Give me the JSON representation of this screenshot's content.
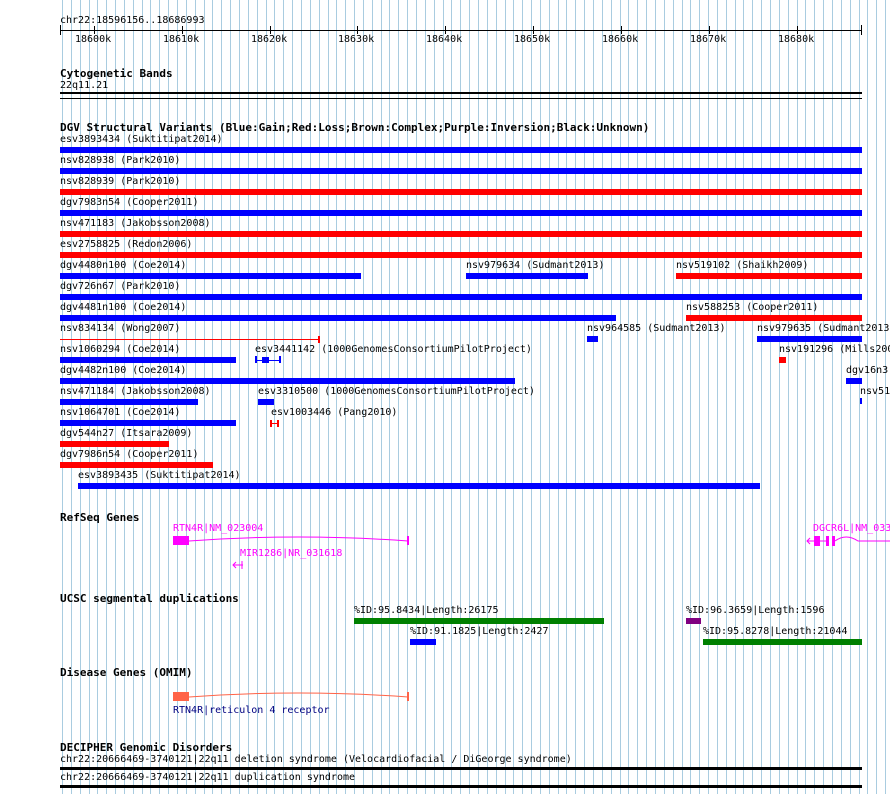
{
  "region": "chr22:18596156..18686993",
  "ruler": {
    "ticks": [
      "18600k",
      "18610k",
      "18620k",
      "18630k",
      "18640k",
      "18650k",
      "18660k",
      "18670k",
      "18680k"
    ]
  },
  "tracks": {
    "cytoband": {
      "title": "Cytogenetic Bands",
      "band": "22q11.21"
    },
    "dgv": {
      "title": "DGV Structural Variants (Blue:Gain;Red:Loss;Brown:Complex;Purple:Inversion;Black:Unknown)",
      "colors": {
        "gain": "#0000ff",
        "loss": "#ff0000"
      },
      "labels": [
        "esv3893434 (Suktitipat2014)",
        "nsv828938 (Park2010)",
        "nsv828939 (Park2010)",
        "dgv7983n54 (Cooper2011)",
        "nsv471183 (Jakobsson2008)",
        "esv2758825 (Redon2006)",
        "dgv4480n100 (Coe2014)",
        "nsv979634 (Sudmant2013)",
        "nsv519102 (Shaikh2009)",
        "dgv726n67 (Park2010)",
        "dgv4481n100 (Coe2014)",
        "nsv588253 (Cooper2011)",
        "nsv834134 (Wong2007)",
        "nsv964585 (Sudmant2013)",
        "nsv979635 (Sudmant2013",
        "nsv1060294 (Coe2014)",
        "esv3441142 (1000GenomesConsortiumPilotProject)",
        "nsv191296 (Mills200",
        "dgv4482n100 (Coe2014)",
        "dgv16n3",
        "nsv471184 (Jakobsson2008)",
        "esv3310500 (1000GenomesConsortiumPilotProject)",
        "nsv51",
        "nsv1064701 (Coe2014)",
        "esv1003446 (Pang2010)",
        "dgv544n27 (Itsara2009)",
        "dgv7986n54 (Cooper2011)",
        "esv3893435 (Suktitipat2014)"
      ]
    },
    "refseq": {
      "title": "RefSeq Genes",
      "color": "#ff00ff",
      "genes": [
        "RTN4R|NM_023004",
        "MIR1286|NR_031618",
        "DGCR6L|NM_033"
      ]
    },
    "segdups": {
      "title": "UCSC segmental duplications",
      "labels": [
        "%ID:95.8434|Length:26175",
        "%ID:91.1825|Length:2427",
        "%ID:96.3659|Length:1596",
        "%ID:95.8278|Length:21044"
      ],
      "colors": {
        "high": "#008000",
        "mid": "#0000ff",
        "top": "#800080"
      }
    },
    "omim": {
      "title": "Disease Genes (OMIM)",
      "gene": "RTN4R|reticulon 4 receptor",
      "color": "#ff6347"
    },
    "decipher": {
      "title": "DECIPHER Genomic Disorders",
      "items": [
        "chr22:20666469-3740121|22q11 deletion syndrome (Velocardiofacial / DiGeorge syndrome)",
        "chr22:20666469-3740121|22q11 duplication syndrome"
      ]
    }
  }
}
